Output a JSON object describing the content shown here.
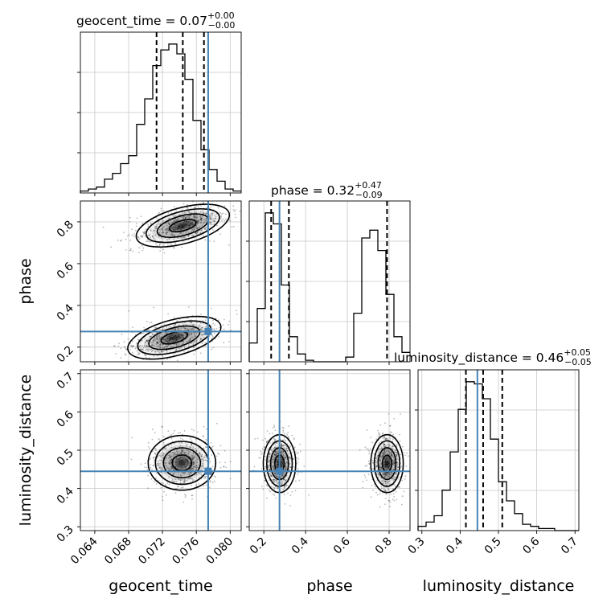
{
  "chart_data": {
    "type": "corner",
    "parameters": [
      "geocent_time",
      "phase",
      "luminosity_distance"
    ],
    "truths": {
      "geocent_time": 0.0774,
      "phase": 0.275,
      "luminosity_distance": 0.445
    },
    "titles": [
      {
        "param": "geocent_time",
        "text": "geocent_time = 0.07",
        "plus": "+0.00",
        "minus": "−0.00"
      },
      {
        "param": "phase",
        "text": "phase = 0.32",
        "plus": "+0.47",
        "minus": "−0.09"
      },
      {
        "param": "luminosity_distance",
        "text": "luminosity_distance = 0.46",
        "plus": "+0.05",
        "minus": "−0.05"
      }
    ],
    "axis_labels": {
      "geocent_time": "geocent_time",
      "phase": "phase",
      "luminosity_distance": "luminosity_distance"
    },
    "ranges": {
      "geocent_time": [
        0.0623,
        0.0813
      ],
      "phase": [
        0.13,
        0.9
      ],
      "luminosity_distance": [
        0.29,
        0.71
      ]
    },
    "ticks": {
      "geocent_time": [
        "0.064",
        "0.068",
        "0.072",
        "0.076",
        "0.080"
      ],
      "phase": [
        "0.2",
        "0.4",
        "0.6",
        "0.8"
      ],
      "luminosity_distance": [
        "0.3",
        "0.4",
        "0.5",
        "0.6",
        "0.7"
      ]
    },
    "quantiles": {
      "geocent_time": [
        0.0713,
        0.0744,
        0.0769
      ],
      "phase": [
        0.235,
        0.32,
        0.79
      ],
      "luminosity_distance": [
        0.415,
        0.46,
        0.51
      ]
    },
    "histograms": {
      "geocent_time": {
        "start": 0.0623,
        "width": 0.00095,
        "counts": [
          1,
          2,
          3,
          7,
          10,
          15,
          19,
          35,
          48,
          65,
          73,
          76,
          71,
          58,
          37,
          22,
          12,
          6,
          2,
          1
        ]
      },
      "phase": {
        "start": 0.13,
        "width": 0.0385,
        "counts": [
          12,
          34,
          95,
          88,
          49,
          16,
          5,
          1,
          0,
          0,
          0,
          0,
          3,
          31,
          79,
          84,
          71,
          43,
          16,
          6
        ]
      },
      "luminosity_distance": {
        "start": 0.29,
        "width": 0.021,
        "counts": [
          2,
          4,
          7,
          19,
          37,
          57,
          70,
          69,
          62,
          43,
          23,
          14,
          8,
          3,
          2,
          1,
          1,
          0,
          0,
          0
        ]
      }
    },
    "blobs": {
      "phase_vs_geocent_time": [
        {
          "x": 0.0734,
          "y": 0.245,
          "rx": 0.0027,
          "ry": 0.041,
          "rot": -15
        },
        {
          "x": 0.0744,
          "y": 0.782,
          "rx": 0.0027,
          "ry": 0.041,
          "rot": -15
        }
      ],
      "luminosity_distance_vs_geocent_time": [
        {
          "x": 0.0743,
          "y": 0.467,
          "rx": 0.0019,
          "ry": 0.034,
          "rot": 0
        }
      ],
      "luminosity_distance_vs_phase": [
        {
          "x": 0.275,
          "y": 0.465,
          "rx": 0.037,
          "ry": 0.036,
          "rot": 0
        },
        {
          "x": 0.79,
          "y": 0.465,
          "rx": 0.037,
          "ry": 0.036,
          "rot": 0
        }
      ]
    },
    "grid": true
  }
}
